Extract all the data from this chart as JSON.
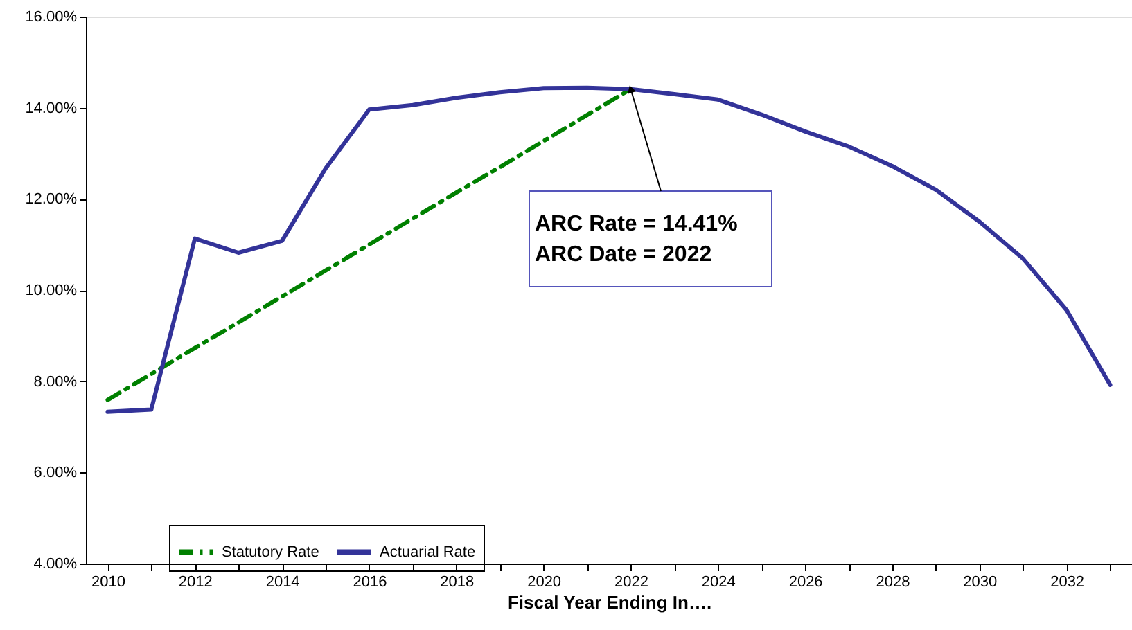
{
  "chart_data": {
    "type": "line",
    "xlabel": "Fiscal Year Ending In….",
    "categories": [
      "2010",
      null,
      "2012",
      null,
      "2014",
      null,
      "2016",
      null,
      "2018",
      null,
      "2020",
      null,
      "2022",
      null,
      "2024",
      null,
      "2026",
      null,
      "2028",
      null,
      "2030",
      null,
      "2032",
      null
    ],
    "series": [
      {
        "name": "Statutory Rate",
        "color": "#008000",
        "line_style": "dashed",
        "values": [
          7.59,
          8.16,
          8.73,
          9.29,
          9.86,
          10.43,
          11.0,
          11.57,
          12.14,
          12.7,
          13.27,
          13.84,
          14.41,
          null,
          null,
          null,
          null,
          null,
          null,
          null,
          null,
          null,
          null,
          null
        ]
      },
      {
        "name": "Actuarial Rate",
        "color": "#333399",
        "line_style": "solid",
        "values": [
          7.33,
          7.38,
          11.13,
          10.82,
          11.08,
          12.67,
          13.96,
          14.06,
          14.22,
          14.34,
          14.43,
          14.44,
          14.41,
          14.3,
          14.18,
          13.85,
          13.48,
          13.15,
          12.72,
          12.2,
          11.5,
          10.69,
          9.56,
          7.92
        ]
      }
    ],
    "ylim": [
      4,
      16
    ],
    "yticks": [
      {
        "value": 4,
        "label": "4.00%"
      },
      {
        "value": 6,
        "label": "6.00%"
      },
      {
        "value": 8,
        "label": "8.00%"
      },
      {
        "value": 10,
        "label": "10.00%"
      },
      {
        "value": 12,
        "label": "12.00%"
      },
      {
        "value": 14,
        "label": "14.00%"
      },
      {
        "value": 16,
        "label": "16.00%"
      }
    ],
    "grid": false,
    "legend": "bottom left",
    "marker": "none",
    "annotations": [
      {
        "text": "ARC Rate = 14.41%\nARC Date = 2022",
        "x": "2022",
        "y": 14.41
      }
    ]
  }
}
